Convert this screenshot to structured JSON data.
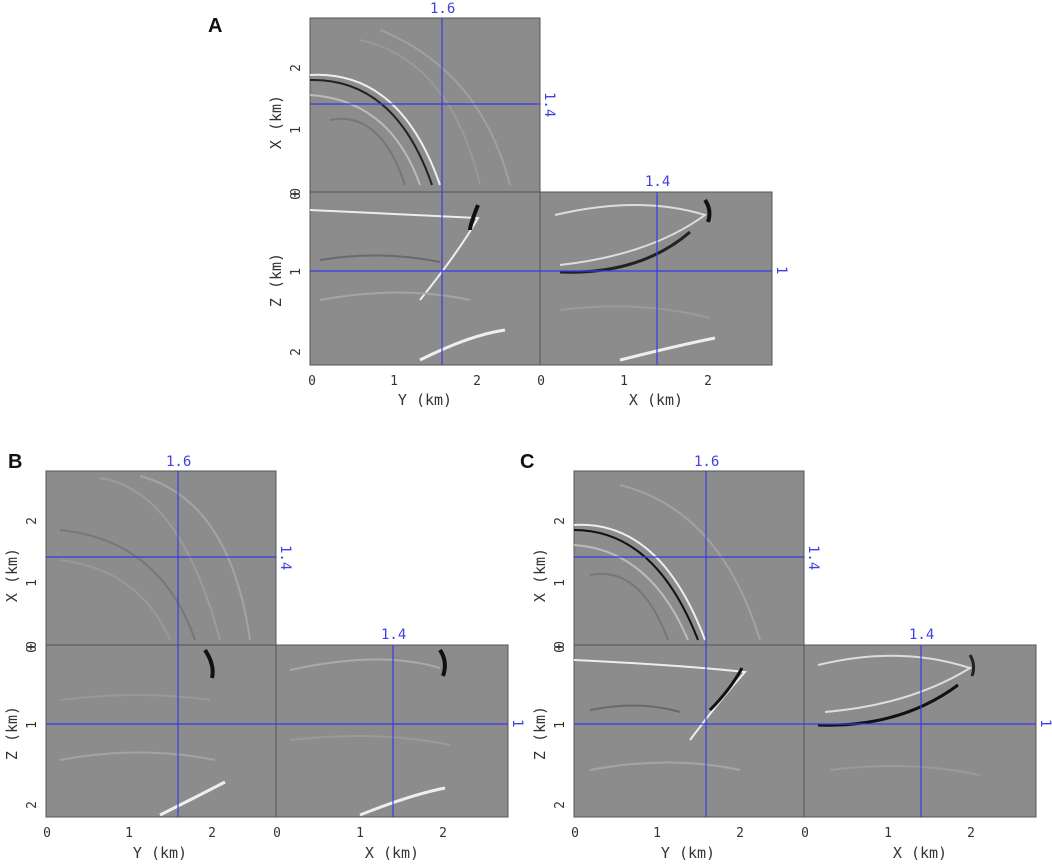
{
  "figure": {
    "panels": [
      {
        "letter": "A",
        "slice_labels": {
          "top": "1.6",
          "right_top": "1.4",
          "right_bottom": "1",
          "front_top": "1.4"
        },
        "x_axis_label": "X (km)",
        "z_axis_label": "Z (km)",
        "y_axis_label": "Y (km)",
        "x_axis_label_bottom": "X (km)",
        "ticks": {
          "top_left": [
            "2",
            "1",
            "0"
          ],
          "bottom_left": [
            "0",
            "1",
            "2"
          ],
          "bottom_y": [
            "0",
            "1",
            "2"
          ],
          "bottom_x": [
            "0",
            "1",
            "2"
          ]
        }
      },
      {
        "letter": "B",
        "slice_labels": {
          "top": "1.6",
          "right_top": "1.4",
          "right_bottom": "1",
          "front_top": "1.4"
        },
        "x_axis_label": "X (km)",
        "z_axis_label": "Z (km)",
        "y_axis_label": "Y (km)",
        "x_axis_label_bottom": "X (km)",
        "ticks": {
          "top_left": [
            "2",
            "1",
            "0"
          ],
          "bottom_left": [
            "0",
            "1",
            "2"
          ],
          "bottom_y": [
            "0",
            "1",
            "2"
          ],
          "bottom_x": [
            "0",
            "1",
            "2"
          ]
        }
      },
      {
        "letter": "C",
        "slice_labels": {
          "top": "1.6",
          "right_top": "1.4",
          "right_bottom": "1",
          "front_top": "1.4"
        },
        "x_axis_label": "X (km)",
        "z_axis_label": "Z (km)",
        "y_axis_label": "Y (km)",
        "x_axis_label_bottom": "X (km)",
        "ticks": {
          "top_left": [
            "2",
            "1",
            "0"
          ],
          "bottom_left": [
            "0",
            "1",
            "2"
          ],
          "bottom_y": [
            "0",
            "1",
            "2"
          ],
          "bottom_x": [
            "0",
            "1",
            "2"
          ]
        }
      }
    ],
    "colors": {
      "background": "#8c8c8c",
      "crosshair": "#3a3ae6",
      "label_blue": "#4040e0"
    }
  }
}
